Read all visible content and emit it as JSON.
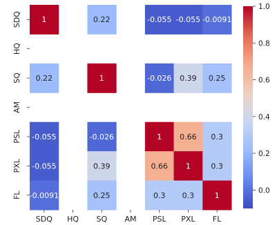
{
  "chart_data": {
    "type": "heatmap",
    "title": "",
    "xlabel": "",
    "ylabel": "",
    "categories": [
      "SDQ",
      "HQ",
      "SQ",
      "AM",
      "PSL",
      "PXL",
      "FL"
    ],
    "cells": [
      {
        "row": "SDQ",
        "col": "SDQ",
        "value": 1,
        "label": "1"
      },
      {
        "row": "SDQ",
        "col": "SQ",
        "value": 0.22,
        "label": "0.22"
      },
      {
        "row": "SDQ",
        "col": "PSL",
        "value": -0.055,
        "label": "-0.055"
      },
      {
        "row": "SDQ",
        "col": "PXL",
        "value": -0.055,
        "label": "-0.055"
      },
      {
        "row": "SDQ",
        "col": "FL",
        "value": -0.0091,
        "label": "-0.0091"
      },
      {
        "row": "SQ",
        "col": "SDQ",
        "value": 0.22,
        "label": "0.22"
      },
      {
        "row": "SQ",
        "col": "SQ",
        "value": 1,
        "label": "1"
      },
      {
        "row": "SQ",
        "col": "PSL",
        "value": -0.026,
        "label": "-0.026"
      },
      {
        "row": "SQ",
        "col": "PXL",
        "value": 0.39,
        "label": "0.39"
      },
      {
        "row": "SQ",
        "col": "FL",
        "value": 0.25,
        "label": "0.25"
      },
      {
        "row": "PSL",
        "col": "SDQ",
        "value": -0.055,
        "label": "-0.055"
      },
      {
        "row": "PSL",
        "col": "SQ",
        "value": -0.026,
        "label": "-0.026"
      },
      {
        "row": "PSL",
        "col": "PSL",
        "value": 1,
        "label": "1"
      },
      {
        "row": "PSL",
        "col": "PXL",
        "value": 0.66,
        "label": "0.66"
      },
      {
        "row": "PSL",
        "col": "FL",
        "value": 0.3,
        "label": "0.3"
      },
      {
        "row": "PXL",
        "col": "SDQ",
        "value": -0.055,
        "label": "-0.055"
      },
      {
        "row": "PXL",
        "col": "SQ",
        "value": 0.39,
        "label": "0.39"
      },
      {
        "row": "PXL",
        "col": "PSL",
        "value": 0.66,
        "label": "0.66"
      },
      {
        "row": "PXL",
        "col": "PXL",
        "value": 1,
        "label": "1"
      },
      {
        "row": "PXL",
        "col": "FL",
        "value": 0.3,
        "label": "0.3"
      },
      {
        "row": "FL",
        "col": "SDQ",
        "value": -0.0091,
        "label": "-0.0091"
      },
      {
        "row": "FL",
        "col": "SQ",
        "value": 0.25,
        "label": "0.25"
      },
      {
        "row": "FL",
        "col": "PSL",
        "value": 0.3,
        "label": "0.3"
      },
      {
        "row": "FL",
        "col": "PXL",
        "value": 0.3,
        "label": "0.3"
      },
      {
        "row": "FL",
        "col": "FL",
        "value": 1,
        "label": "1"
      }
    ],
    "colorbar": {
      "colormap": "coolwarm",
      "range": [
        -0.1,
        1.0
      ],
      "ticks": [
        "0.0",
        "0.2",
        "0.4",
        "0.6",
        "0.8",
        "1.0"
      ],
      "tick_values": [
        0.0,
        0.2,
        0.4,
        0.6,
        0.8,
        1.0
      ],
      "colors": [
        "#3b4cc0",
        "#6788ee",
        "#9abbff",
        "#c9d7f0",
        "#edd1c2",
        "#f7a889",
        "#e26952",
        "#b40426"
      ]
    },
    "grid": false,
    "legend": "right"
  }
}
